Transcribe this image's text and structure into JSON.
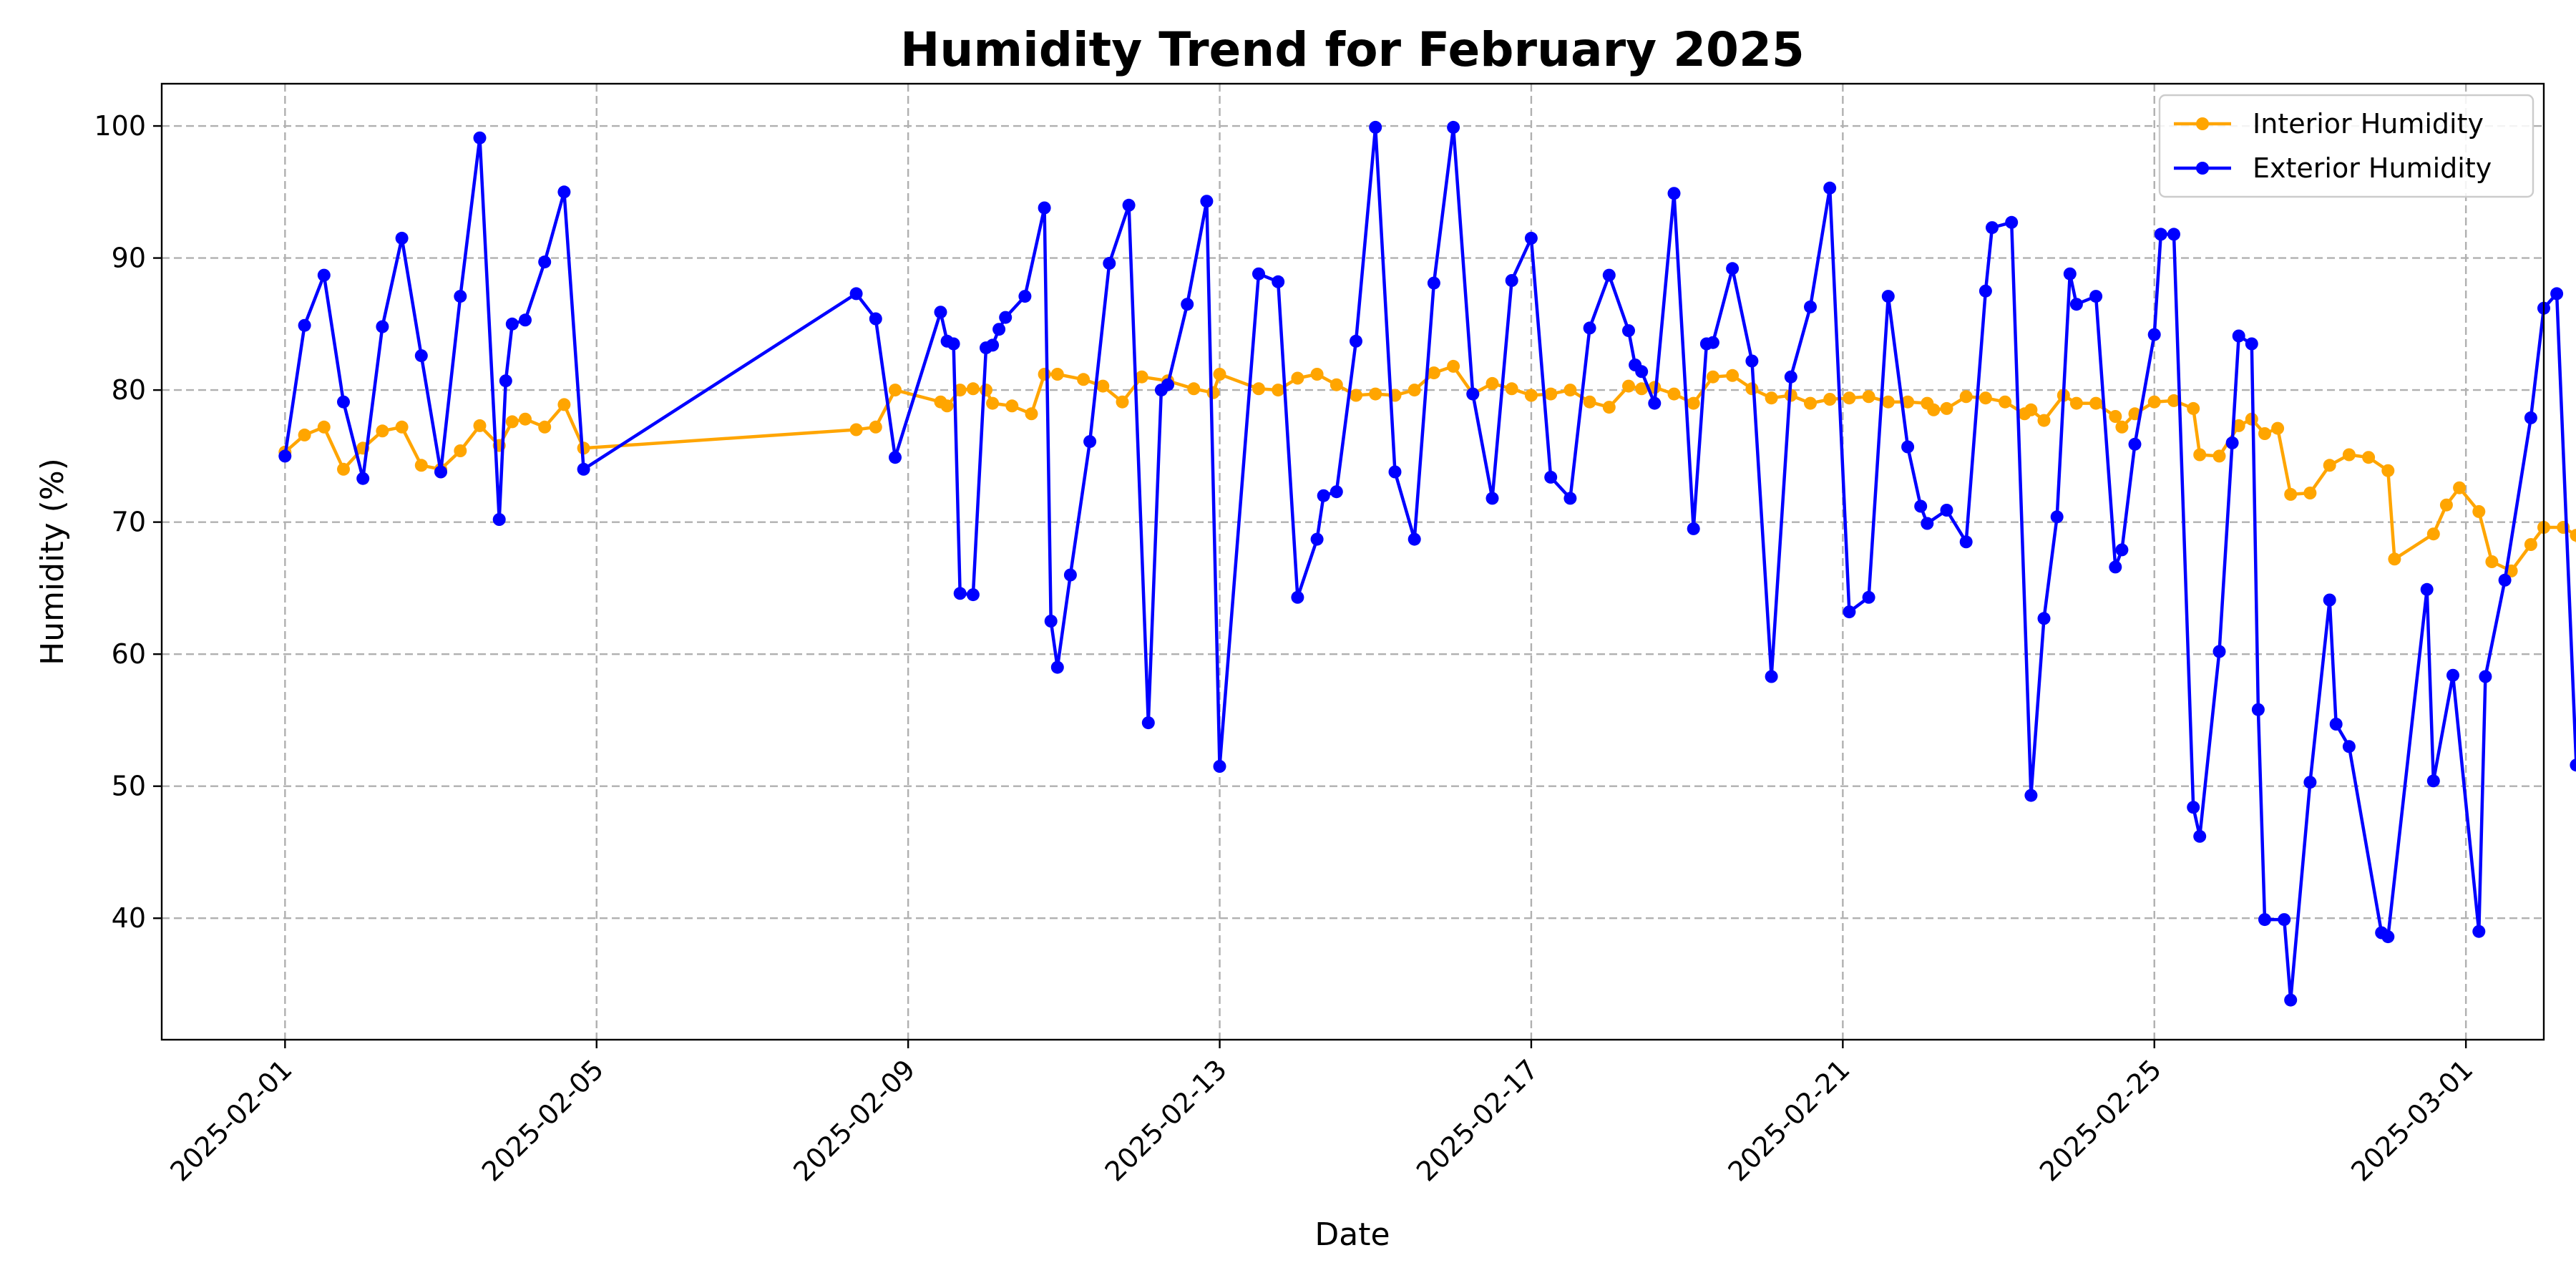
{
  "chart_data": {
    "type": "line",
    "title": "Humidity Trend for February 2025",
    "xlabel": "Date",
    "ylabel": "Humidity (%)",
    "x_axis": "date",
    "xlim": [
      "2025-01-30T10:00",
      "2025-03-02T00:00"
    ],
    "ylim": [
      30.8,
      103.2
    ],
    "x_ticks": [
      "2025-02-01",
      "2025-02-05",
      "2025-02-09",
      "2025-02-13",
      "2025-02-17",
      "2025-02-21",
      "2025-02-25",
      "2025-03-01"
    ],
    "y_ticks": [
      40,
      50,
      60,
      70,
      80,
      90,
      100
    ],
    "grid": true,
    "legend_position": "top-right",
    "series": [
      {
        "name": "Interior Humidity",
        "color": "#FFA500",
        "points": [
          [
            "2025-02-01T00:00",
            75.3
          ],
          [
            "2025-02-01T06:00",
            76.6
          ],
          [
            "2025-02-01T12:00",
            77.2
          ],
          [
            "2025-02-01T18:00",
            74.0
          ],
          [
            "2025-02-02T00:00",
            75.6
          ],
          [
            "2025-02-02T06:00",
            76.9
          ],
          [
            "2025-02-02T12:00",
            77.2
          ],
          [
            "2025-02-02T18:00",
            74.3
          ],
          [
            "2025-02-03T00:00",
            74.0
          ],
          [
            "2025-02-03T06:00",
            75.4
          ],
          [
            "2025-02-03T12:00",
            77.3
          ],
          [
            "2025-02-03T18:00",
            75.8
          ],
          [
            "2025-02-03T22:00",
            77.6
          ],
          [
            "2025-02-04T02:00",
            77.8
          ],
          [
            "2025-02-04T08:00",
            77.2
          ],
          [
            "2025-02-04T14:00",
            78.9
          ],
          [
            "2025-02-04T20:00",
            75.6
          ],
          [
            "2025-02-08T08:00",
            77.0
          ],
          [
            "2025-02-08T14:00",
            77.2
          ],
          [
            "2025-02-08T20:00",
            80.0
          ],
          [
            "2025-02-09T10:00",
            79.1
          ],
          [
            "2025-02-09T12:00",
            78.8
          ],
          [
            "2025-02-09T16:00",
            80.0
          ],
          [
            "2025-02-09T20:00",
            80.1
          ],
          [
            "2025-02-10T00:00",
            80.0
          ],
          [
            "2025-02-10T02:00",
            79.0
          ],
          [
            "2025-02-10T08:00",
            78.8
          ],
          [
            "2025-02-10T14:00",
            78.2
          ],
          [
            "2025-02-10T18:00",
            81.2
          ],
          [
            "2025-02-10T22:00",
            81.2
          ],
          [
            "2025-02-11T06:00",
            80.8
          ],
          [
            "2025-02-11T12:00",
            80.3
          ],
          [
            "2025-02-11T18:00",
            79.1
          ],
          [
            "2025-02-12T00:00",
            81.0
          ],
          [
            "2025-02-12T08:00",
            80.7
          ],
          [
            "2025-02-12T16:00",
            80.1
          ],
          [
            "2025-02-12T22:00",
            79.8
          ],
          [
            "2025-02-13T00:00",
            81.2
          ],
          [
            "2025-02-13T12:00",
            80.1
          ],
          [
            "2025-02-13T18:00",
            80.0
          ],
          [
            "2025-02-14T00:00",
            80.9
          ],
          [
            "2025-02-14T06:00",
            81.2
          ],
          [
            "2025-02-14T12:00",
            80.4
          ],
          [
            "2025-02-14T18:00",
            79.6
          ],
          [
            "2025-02-15T00:00",
            79.7
          ],
          [
            "2025-02-15T06:00",
            79.6
          ],
          [
            "2025-02-15T12:00",
            80.0
          ],
          [
            "2025-02-15T18:00",
            81.3
          ],
          [
            "2025-02-16T00:00",
            81.8
          ],
          [
            "2025-02-16T06:00",
            79.7
          ],
          [
            "2025-02-16T12:00",
            80.5
          ],
          [
            "2025-02-16T18:00",
            80.1
          ],
          [
            "2025-02-17T00:00",
            79.6
          ],
          [
            "2025-02-17T06:00",
            79.7
          ],
          [
            "2025-02-17T12:00",
            80.0
          ],
          [
            "2025-02-17T18:00",
            79.1
          ],
          [
            "2025-02-18T00:00",
            78.7
          ],
          [
            "2025-02-18T06:00",
            80.3
          ],
          [
            "2025-02-18T10:00",
            80.1
          ],
          [
            "2025-02-18T14:00",
            80.2
          ],
          [
            "2025-02-18T20:00",
            79.7
          ],
          [
            "2025-02-19T02:00",
            79.0
          ],
          [
            "2025-02-19T08:00",
            81.0
          ],
          [
            "2025-02-19T14:00",
            81.1
          ],
          [
            "2025-02-19T20:00",
            80.1
          ],
          [
            "2025-02-20T02:00",
            79.4
          ],
          [
            "2025-02-20T08:00",
            79.6
          ],
          [
            "2025-02-20T14:00",
            79.0
          ],
          [
            "2025-02-20T20:00",
            79.3
          ],
          [
            "2025-02-21T02:00",
            79.4
          ],
          [
            "2025-02-21T08:00",
            79.5
          ],
          [
            "2025-02-21T14:00",
            79.1
          ],
          [
            "2025-02-21T20:00",
            79.1
          ],
          [
            "2025-02-22T02:00",
            79.0
          ],
          [
            "2025-02-22T04:00",
            78.5
          ],
          [
            "2025-02-22T08:00",
            78.6
          ],
          [
            "2025-02-22T14:00",
            79.5
          ],
          [
            "2025-02-22T20:00",
            79.4
          ],
          [
            "2025-02-23T02:00",
            79.1
          ],
          [
            "2025-02-23T08:00",
            78.2
          ],
          [
            "2025-02-23T10:00",
            78.5
          ],
          [
            "2025-02-23T14:00",
            77.7
          ],
          [
            "2025-02-23T20:00",
            79.6
          ],
          [
            "2025-02-24T00:00",
            79.0
          ],
          [
            "2025-02-24T06:00",
            79.0
          ],
          [
            "2025-02-24T12:00",
            78.0
          ],
          [
            "2025-02-24T14:00",
            77.2
          ],
          [
            "2025-02-24T18:00",
            78.2
          ],
          [
            "2025-02-25T00:00",
            79.1
          ],
          [
            "2025-02-25T06:00",
            79.2
          ],
          [
            "2025-02-25T12:00",
            78.6
          ],
          [
            "2025-02-25T14:00",
            75.1
          ],
          [
            "2025-02-25T20:00",
            75.0
          ],
          [
            "2025-02-26T02:00",
            77.3
          ],
          [
            "2025-02-26T06:00",
            77.8
          ],
          [
            "2025-02-26T10:00",
            76.7
          ],
          [
            "2025-02-26T14:00",
            77.1
          ],
          [
            "2025-02-26T18:00",
            72.1
          ],
          [
            "2025-02-27T00:00",
            72.2
          ],
          [
            "2025-02-27T06:00",
            74.3
          ],
          [
            "2025-02-27T12:00",
            75.1
          ],
          [
            "2025-02-27T18:00",
            74.9
          ],
          [
            "2025-02-28T00:00",
            73.9
          ],
          [
            "2025-02-28T02:00",
            67.2
          ],
          [
            "2025-02-28T14:00",
            69.1
          ],
          [
            "2025-02-28T18:00",
            71.3
          ],
          [
            "2025-02-28T22:00",
            72.6
          ],
          [
            "2025-03-01T04:00",
            70.8
          ],
          [
            "2025-03-01T08:00",
            67.0
          ],
          [
            "2025-03-01T14:00",
            66.3
          ],
          [
            "2025-03-01T20:00",
            68.3
          ],
          [
            "2025-03-02T00:00",
            69.6
          ],
          [
            "2025-03-02T06:00",
            69.6
          ],
          [
            "2025-03-02T10:00",
            69.0
          ],
          [
            "2025-03-02T12:00",
            66.0
          ]
        ]
      },
      {
        "name": "Exterior Humidity",
        "color": "#0000FF",
        "points": [
          [
            "2025-02-01T00:00",
            75.0
          ],
          [
            "2025-02-01T06:00",
            84.9
          ],
          [
            "2025-02-01T12:00",
            88.7
          ],
          [
            "2025-02-01T18:00",
            79.1
          ],
          [
            "2025-02-02T00:00",
            73.3
          ],
          [
            "2025-02-02T06:00",
            84.8
          ],
          [
            "2025-02-02T12:00",
            91.5
          ],
          [
            "2025-02-02T18:00",
            82.6
          ],
          [
            "2025-02-03T00:00",
            73.8
          ],
          [
            "2025-02-03T06:00",
            87.1
          ],
          [
            "2025-02-03T12:00",
            99.1
          ],
          [
            "2025-02-03T18:00",
            70.2
          ],
          [
            "2025-02-03T20:00",
            80.7
          ],
          [
            "2025-02-03T22:00",
            85.0
          ],
          [
            "2025-02-04T02:00",
            85.3
          ],
          [
            "2025-02-04T08:00",
            89.7
          ],
          [
            "2025-02-04T14:00",
            95.0
          ],
          [
            "2025-02-04T20:00",
            74.0
          ],
          [
            "2025-02-08T08:00",
            87.3
          ],
          [
            "2025-02-08T14:00",
            85.4
          ],
          [
            "2025-02-08T20:00",
            74.9
          ],
          [
            "2025-02-09T10:00",
            85.9
          ],
          [
            "2025-02-09T12:00",
            83.7
          ],
          [
            "2025-02-09T14:00",
            83.5
          ],
          [
            "2025-02-09T16:00",
            64.6
          ],
          [
            "2025-02-09T20:00",
            64.5
          ],
          [
            "2025-02-10T00:00",
            83.2
          ],
          [
            "2025-02-10T02:00",
            83.4
          ],
          [
            "2025-02-10T04:00",
            84.6
          ],
          [
            "2025-02-10T06:00",
            85.5
          ],
          [
            "2025-02-10T12:00",
            87.1
          ],
          [
            "2025-02-10T18:00",
            93.8
          ],
          [
            "2025-02-10T20:00",
            62.5
          ],
          [
            "2025-02-10T22:00",
            59.0
          ],
          [
            "2025-02-11T02:00",
            66.0
          ],
          [
            "2025-02-11T08:00",
            76.1
          ],
          [
            "2025-02-11T14:00",
            89.6
          ],
          [
            "2025-02-11T20:00",
            94.0
          ],
          [
            "2025-02-12T02:00",
            54.8
          ],
          [
            "2025-02-12T06:00",
            80.0
          ],
          [
            "2025-02-12T08:00",
            80.4
          ],
          [
            "2025-02-12T14:00",
            86.5
          ],
          [
            "2025-02-12T20:00",
            94.3
          ],
          [
            "2025-02-13T00:00",
            51.5
          ],
          [
            "2025-02-13T12:00",
            88.8
          ],
          [
            "2025-02-13T18:00",
            88.2
          ],
          [
            "2025-02-14T00:00",
            64.3
          ],
          [
            "2025-02-14T06:00",
            68.7
          ],
          [
            "2025-02-14T08:00",
            72.0
          ],
          [
            "2025-02-14T12:00",
            72.3
          ],
          [
            "2025-02-14T18:00",
            83.7
          ],
          [
            "2025-02-15T00:00",
            99.9
          ],
          [
            "2025-02-15T06:00",
            73.8
          ],
          [
            "2025-02-15T12:00",
            68.7
          ],
          [
            "2025-02-15T18:00",
            88.1
          ],
          [
            "2025-02-16T00:00",
            99.9
          ],
          [
            "2025-02-16T06:00",
            79.7
          ],
          [
            "2025-02-16T12:00",
            71.8
          ],
          [
            "2025-02-16T18:00",
            88.3
          ],
          [
            "2025-02-17T00:00",
            91.5
          ],
          [
            "2025-02-17T06:00",
            73.4
          ],
          [
            "2025-02-17T12:00",
            71.8
          ],
          [
            "2025-02-17T18:00",
            84.7
          ],
          [
            "2025-02-18T00:00",
            88.7
          ],
          [
            "2025-02-18T06:00",
            84.5
          ],
          [
            "2025-02-18T08:00",
            81.9
          ],
          [
            "2025-02-18T10:00",
            81.4
          ],
          [
            "2025-02-18T14:00",
            79.0
          ],
          [
            "2025-02-18T20:00",
            94.9
          ],
          [
            "2025-02-19T02:00",
            69.5
          ],
          [
            "2025-02-19T06:00",
            83.5
          ],
          [
            "2025-02-19T08:00",
            83.6
          ],
          [
            "2025-02-19T14:00",
            89.2
          ],
          [
            "2025-02-19T20:00",
            82.2
          ],
          [
            "2025-02-20T02:00",
            58.3
          ],
          [
            "2025-02-20T08:00",
            81.0
          ],
          [
            "2025-02-20T14:00",
            86.3
          ],
          [
            "2025-02-20T20:00",
            95.3
          ],
          [
            "2025-02-21T02:00",
            63.2
          ],
          [
            "2025-02-21T08:00",
            64.3
          ],
          [
            "2025-02-21T14:00",
            87.1
          ],
          [
            "2025-02-21T20:00",
            75.7
          ],
          [
            "2025-02-22T00:00",
            71.2
          ],
          [
            "2025-02-22T02:00",
            69.9
          ],
          [
            "2025-02-22T08:00",
            70.9
          ],
          [
            "2025-02-22T14:00",
            68.5
          ],
          [
            "2025-02-22T20:00",
            87.5
          ],
          [
            "2025-02-22T22:00",
            92.3
          ],
          [
            "2025-02-23T04:00",
            92.7
          ],
          [
            "2025-02-23T10:00",
            49.3
          ],
          [
            "2025-02-23T14:00",
            62.7
          ],
          [
            "2025-02-23T18:00",
            70.4
          ],
          [
            "2025-02-23T22:00",
            88.8
          ],
          [
            "2025-02-24T00:00",
            86.5
          ],
          [
            "2025-02-24T06:00",
            87.1
          ],
          [
            "2025-02-24T12:00",
            66.6
          ],
          [
            "2025-02-24T14:00",
            67.9
          ],
          [
            "2025-02-24T18:00",
            75.9
          ],
          [
            "2025-02-25T00:00",
            84.2
          ],
          [
            "2025-02-25T02:00",
            91.8
          ],
          [
            "2025-02-25T06:00",
            91.8
          ],
          [
            "2025-02-25T12:00",
            48.4
          ],
          [
            "2025-02-25T14:00",
            46.2
          ],
          [
            "2025-02-25T20:00",
            60.2
          ],
          [
            "2025-02-26T00:00",
            76.0
          ],
          [
            "2025-02-26T02:00",
            84.1
          ],
          [
            "2025-02-26T06:00",
            83.5
          ],
          [
            "2025-02-26T08:00",
            55.8
          ],
          [
            "2025-02-26T10:00",
            39.9
          ],
          [
            "2025-02-26T16:00",
            39.9
          ],
          [
            "2025-02-26T18:00",
            33.8
          ],
          [
            "2025-02-27T00:00",
            50.3
          ],
          [
            "2025-02-27T06:00",
            64.1
          ],
          [
            "2025-02-27T08:00",
            54.7
          ],
          [
            "2025-02-27T12:00",
            53.0
          ],
          [
            "2025-02-27T22:00",
            38.9
          ],
          [
            "2025-02-28T00:00",
            38.6
          ],
          [
            "2025-02-28T12:00",
            64.9
          ],
          [
            "2025-02-28T14:00",
            50.4
          ],
          [
            "2025-02-28T20:00",
            58.4
          ],
          [
            "2025-03-01T04:00",
            39.0
          ],
          [
            "2025-03-01T06:00",
            58.3
          ],
          [
            "2025-03-01T12:00",
            65.6
          ],
          [
            "2025-03-01T20:00",
            77.9
          ],
          [
            "2025-03-02T00:00",
            86.2
          ],
          [
            "2025-03-02T04:00",
            87.3
          ],
          [
            "2025-03-02T10:00",
            51.6
          ],
          [
            "2025-03-02T12:00",
            52.1
          ]
        ]
      }
    ]
  }
}
